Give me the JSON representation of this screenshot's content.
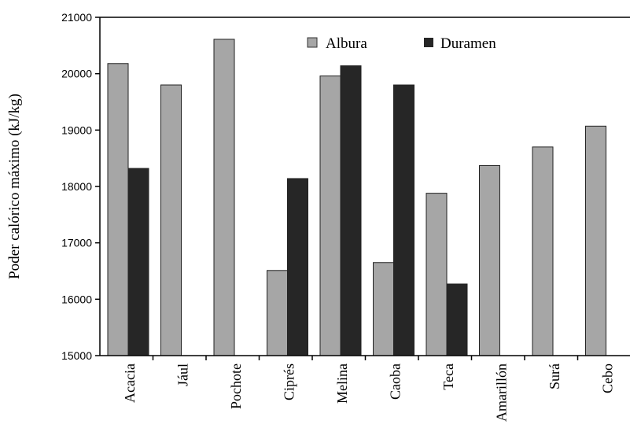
{
  "chart_data": {
    "type": "bar",
    "ylabel": "Poder calórico máximo (kJ/kg)",
    "xlabel": "",
    "ylim": [
      15000,
      21000
    ],
    "yticks": [
      15000,
      16000,
      17000,
      18000,
      19000,
      20000,
      21000
    ],
    "ytick_labels": [
      "15000",
      "16000",
      "17000",
      "18000",
      "19000",
      "20000",
      "21000"
    ],
    "categories": [
      "Acacia",
      "Jául",
      "Pochote",
      "Ciprés",
      "Melina",
      "Caoba",
      "Teca",
      "Amarillón",
      "Surá",
      "Cebo"
    ],
    "series": [
      {
        "name": "Albura",
        "color": "#a6a6a6",
        "values": [
          20180,
          19800,
          20610,
          16510,
          19960,
          16650,
          17880,
          18370,
          18700,
          19070
        ]
      },
      {
        "name": "Duramen",
        "color": "#262626",
        "values": [
          18320,
          null,
          null,
          18140,
          20140,
          19800,
          16270,
          null,
          null,
          null
        ]
      }
    ],
    "legend_position": "top-center",
    "grid": false
  }
}
